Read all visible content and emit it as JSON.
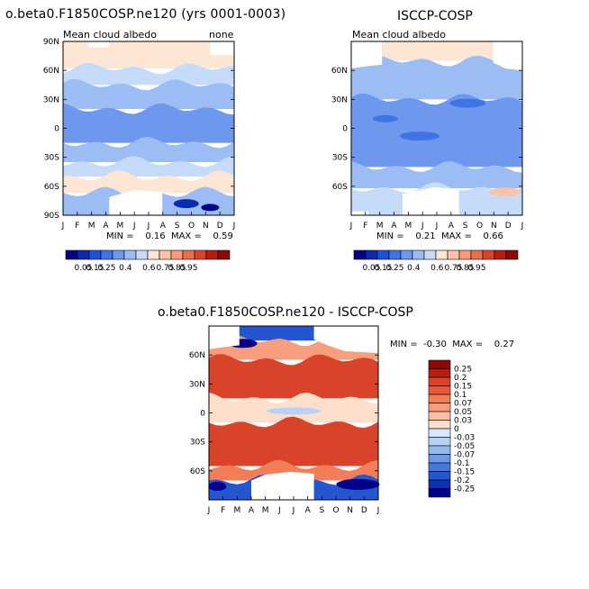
{
  "panels": {
    "a": {
      "title": "o.beta0.F1850COSP.ne120 (yrs 0001-0003)",
      "left_label": "Mean cloud albedo",
      "right_label": "none",
      "stats": "MIN =    0.16  MAX =    0.59"
    },
    "b": {
      "title": "ISCCP-COSP",
      "left_label": "Mean cloud albedo",
      "stats": "MIN =    0.21  MAX =    0.66"
    },
    "c": {
      "title": "o.beta0.F1850COSP.ne120 - ISCCP-COSP",
      "stats": "MIN =  -0.30  MAX =    0.27"
    }
  },
  "months": [
    "J",
    "F",
    "M",
    "A",
    "M",
    "J",
    "J",
    "A",
    "S",
    "O",
    "N",
    "D",
    "J"
  ],
  "lat_labels_full": [
    "90N",
    "60N",
    "30N",
    "0",
    "30S",
    "60S",
    "90S"
  ],
  "lat_labels_short": [
    "60N",
    "30N",
    "0",
    "30S",
    "60S"
  ],
  "colors": {
    "seq": [
      "#00008b",
      "#0a2ab3",
      "#1f50d6",
      "#3f74e6",
      "#6e98ee",
      "#9cbcf4",
      "#c4dcfa",
      "#fde6d4",
      "#f9c4a8",
      "#f59c7a",
      "#eb6f4c",
      "#d9432a",
      "#b81d12",
      "#8b0a06"
    ],
    "div": [
      "#8b0a06",
      "#b81d12",
      "#d9432a",
      "#eb5a36",
      "#f27d57",
      "#f69e7e",
      "#f9bea3",
      "#fde0cc",
      "#d6e8fa",
      "#b8d2f7",
      "#97b9f1",
      "#6f9aea",
      "#4677e0",
      "#2456d2",
      "#0d33b5",
      "#00008b"
    ]
  },
  "chart_data": [
    {
      "type": "heatmap",
      "title": "o.beta0.F1850COSP.ne120 (yrs 0001-0003)",
      "variable": "Mean cloud albedo",
      "units": "none",
      "x": [
        "J",
        "F",
        "M",
        "A",
        "M",
        "J",
        "J",
        "A",
        "S",
        "O",
        "N",
        "D",
        "J"
      ],
      "y": [
        "90N",
        "60N",
        "30N",
        "0",
        "30S",
        "60S",
        "90S"
      ],
      "ylim": [
        -90,
        90
      ],
      "min": 0.16,
      "max": 0.59,
      "colorbar_labels": [
        "0.05",
        "0.15",
        "0.25",
        "0.4",
        "0.6",
        "0.75",
        "0.85",
        "0.95"
      ],
      "bands": [
        {
          "lat_top": 90,
          "lat_bottom": 62,
          "level": 7
        },
        {
          "lat_top": 62,
          "lat_bottom": 45,
          "level": 6
        },
        {
          "lat_top": 45,
          "lat_bottom": 20,
          "level": 5
        },
        {
          "lat_top": 20,
          "lat_bottom": -15,
          "level": 4
        },
        {
          "lat_top": -15,
          "lat_bottom": -35,
          "level": 5
        },
        {
          "lat_top": -35,
          "lat_bottom": -50,
          "level": 6
        },
        {
          "lat_top": -50,
          "lat_bottom": -67,
          "level": 7
        },
        {
          "lat_top": -67,
          "lat_bottom": -90,
          "level": 5
        }
      ]
    },
    {
      "type": "heatmap",
      "title": "ISCCP-COSP",
      "variable": "Mean cloud albedo",
      "x": [
        "J",
        "F",
        "M",
        "A",
        "M",
        "J",
        "J",
        "A",
        "S",
        "O",
        "N",
        "D",
        "J"
      ],
      "y": [
        "60N",
        "30N",
        "0",
        "30S",
        "60S"
      ],
      "ylim": [
        -90,
        90
      ],
      "min": 0.21,
      "max": 0.66,
      "colorbar_labels": [
        "0.05",
        "0.15",
        "0.25",
        "0.4",
        "0.6",
        "0.75",
        "0.85",
        "0.95"
      ],
      "bands": [
        {
          "lat_top": 90,
          "lat_bottom": 70,
          "level": 7
        },
        {
          "lat_top": 70,
          "lat_bottom": 30,
          "level": 5
        },
        {
          "lat_top": 30,
          "lat_bottom": -40,
          "level": 4
        },
        {
          "lat_top": -40,
          "lat_bottom": -62,
          "level": 5
        },
        {
          "lat_top": -62,
          "lat_bottom": -90,
          "level": 6
        }
      ]
    },
    {
      "type": "heatmap",
      "title": "o.beta0.F1850COSP.ne120 - ISCCP-COSP",
      "x": [
        "J",
        "F",
        "M",
        "A",
        "M",
        "J",
        "J",
        "A",
        "S",
        "O",
        "N",
        "D",
        "J"
      ],
      "y": [
        "60N",
        "30N",
        "0",
        "30S",
        "60S"
      ],
      "ylim": [
        -90,
        90
      ],
      "min": -0.3,
      "max": 0.27,
      "colorbar_labels": [
        "0.25",
        "0.2",
        "0.15",
        "0.1",
        "0.07",
        "0.05",
        "0.03",
        "0",
        "-0.03",
        "-0.05",
        "-0.07",
        "-0.1",
        "-0.15",
        "-0.2",
        "-0.25"
      ],
      "bands": [
        {
          "lat_top": 90,
          "lat_bottom": 75,
          "level": 13
        },
        {
          "lat_top": 75,
          "lat_bottom": 55,
          "level": 5
        },
        {
          "lat_top": 55,
          "lat_bottom": 15,
          "level": 2
        },
        {
          "lat_top": 15,
          "lat_bottom": -10,
          "level": 7
        },
        {
          "lat_top": -10,
          "lat_bottom": -55,
          "level": 2
        },
        {
          "lat_top": -55,
          "lat_bottom": -70,
          "level": 4
        },
        {
          "lat_top": -70,
          "lat_bottom": -90,
          "level": 13
        }
      ]
    }
  ]
}
